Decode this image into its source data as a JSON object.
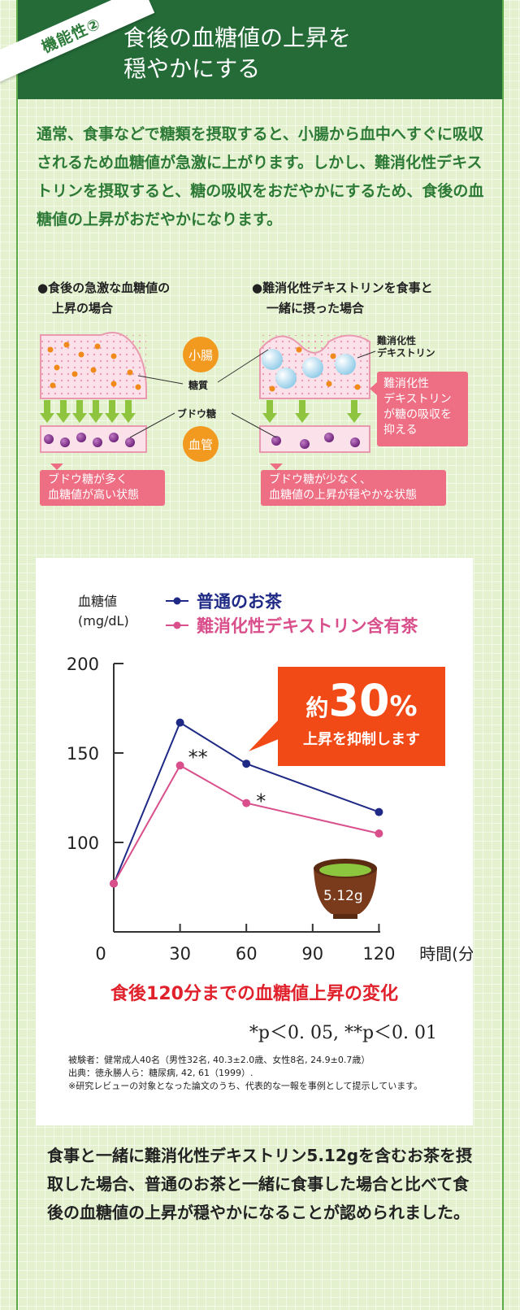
{
  "header": {
    "badge": "機能性②",
    "title_line1": "食後の血糖値の上昇を",
    "title_line2": "穏やかにする"
  },
  "intro": "通常、食事などで糖類を摂取すると、小腸から血中へすぐに吸収されるため血糖値が急激に上がります。しかし、難消化性デキストリンを摂取すると、糖の吸収をおだやかにするため、食後の血糖値の上昇がおだやかになります。",
  "diagram": {
    "left_caption_1": "●食後の急激な血糖値の",
    "left_caption_2": "上昇の場合",
    "right_caption_1": "●難消化性デキストリンを食事と",
    "right_caption_2": "一緒に摂った場合",
    "label_intestine": "小腸",
    "label_vessel": "血管",
    "label_sugar": "糖質",
    "label_glucose": "ブドウ糖",
    "label_dextrin_1": "難消化性",
    "label_dextrin_2": "デキストリン",
    "dextrin_box": [
      "難消化性",
      "デキストリン",
      "が糖の吸収を",
      "抑える"
    ],
    "left_state_1": "ブドウ糖が多く",
    "left_state_2": "血糖値が高い状態",
    "right_state_1": "ブドウ糖が少なく、",
    "right_state_2": "血糖値の上昇が穏やかな状態"
  },
  "chart_data": {
    "type": "line",
    "ylabel_1": "血糖値",
    "ylabel_2": "(mg/dL)",
    "xlabel": "時間(分)",
    "x": [
      0,
      30,
      60,
      120
    ],
    "x_ticks": [
      "0",
      "30",
      "60",
      "90",
      "120"
    ],
    "x_tick_values": [
      0,
      30,
      60,
      90,
      120
    ],
    "y_ticks": [
      "200",
      "150",
      "100"
    ],
    "y_tick_values": [
      200,
      150,
      100
    ],
    "ylim": [
      50,
      200
    ],
    "xlim": [
      0,
      125
    ],
    "series": [
      {
        "name": "普通のお茶",
        "color": "#1f2a86",
        "values": [
          77,
          167,
          144,
          117
        ]
      },
      {
        "name": "難消化性デキストリン含有茶",
        "color": "#d94f8c",
        "values": [
          77,
          143,
          122,
          105
        ]
      }
    ],
    "annotations": [
      "**",
      "*"
    ],
    "callout_prefix": "約",
    "callout_number": "30",
    "callout_unit": "%",
    "callout_text": "上昇を抑制します",
    "cup_label": "5.12g",
    "title": "食後120分までの血糖値上昇の変化",
    "significance": "*p＜0. 05, **p＜0. 01",
    "footnote_1": "被験者：健常成人40名（男性32名, 40.3±2.0歳、女性8名, 24.9±0.7歳）",
    "footnote_2": "出典：徳永勝人ら：糖尿病, 42, 61（1999）.",
    "footnote_3": "※研究レビューの対象となった論文のうち、代表的な一報を事例として提示しています。"
  },
  "conclusion": "食事と一緒に難消化性デキストリン5.12gを含むお茶を摂取した場合、普通のお茶と一緒に食事した場合と比べて食後の血糖値の上昇が穏やかになることが認められました。",
  "colors": {
    "header_green": "#256b38",
    "intro_green": "#2d7a36",
    "accent_orange": "#f24a17",
    "title_red": "#e0212c",
    "pink": "#ee6f84"
  }
}
